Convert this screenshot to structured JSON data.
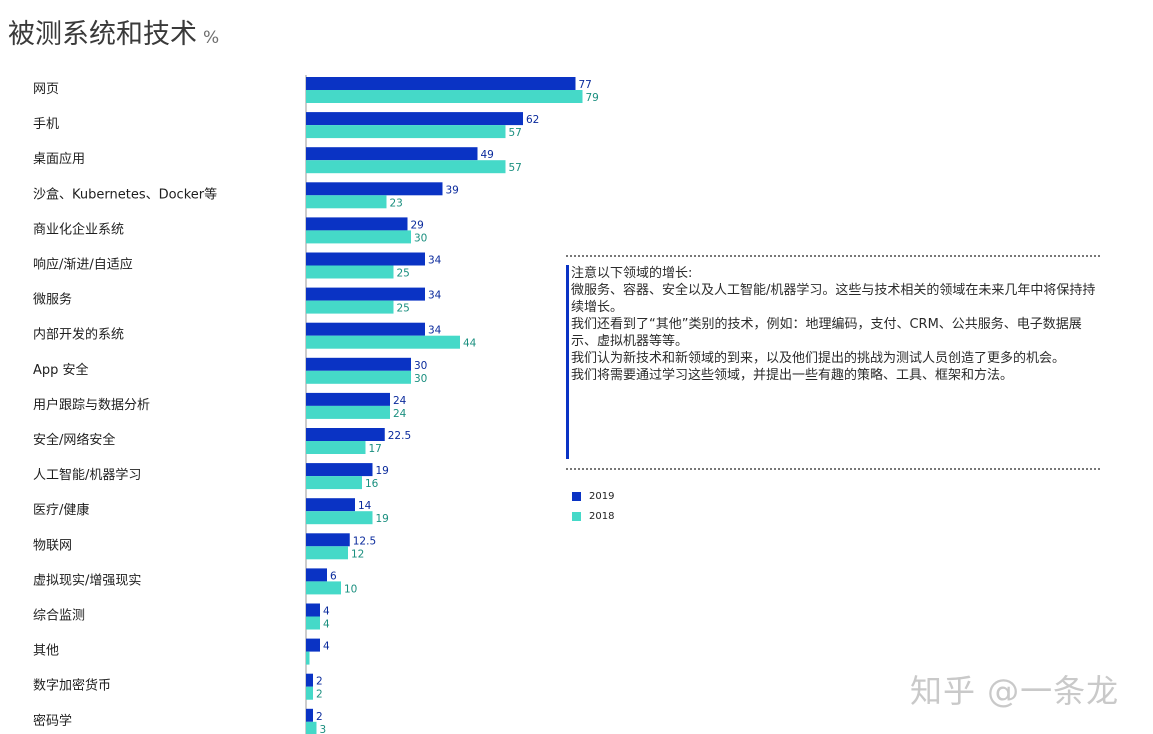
{
  "title": "被测系统和技术",
  "title_unit": "%",
  "colors": {
    "s2019": "#0a33c4",
    "s2018": "#45d9c8",
    "label2019": "#0a2a9c",
    "label2018": "#1a8f7f"
  },
  "note": {
    "heading": "注意以下领域的增长:",
    "lines": [
      "微服务、容器、安全以及人工智能/机器学习。这些与技术相关的领域在未来几年中将保持持续增长。",
      "我们还看到了“其他”类别的技术，例如：地理编码，支付、CRM、公共服务、电子数据展示、虚拟机器等等。",
      "我们认为新技术和新领域的到来，以及他们提出的挑战为测试人员创造了更多的机会。",
      "我们将需要通过学习这些领域，并提出一些有趣的策略、工具、框架和方法。"
    ]
  },
  "watermark": "知乎 @一条龙",
  "chart_data": {
    "type": "bar",
    "orientation": "horizontal",
    "categories": [
      "网页",
      "手机",
      "桌面应用",
      "沙盒、Kubernetes、Docker等",
      "商业化企业系统",
      "响应/渐进/自适应",
      "微服务",
      "内部开发的系统",
      "App 安全",
      "用户跟踪与数据分析",
      "安全/网络安全",
      "人工智能/机器学习",
      "医疗/健康",
      "物联网",
      "虚拟现实/增强现实",
      "综合监测",
      "其他",
      "数字加密货币",
      "密码学"
    ],
    "series": [
      {
        "name": "2019",
        "values": [
          77,
          62,
          49,
          39,
          29,
          34,
          34,
          34,
          30,
          24,
          22.5,
          19,
          14,
          12.5,
          6,
          4,
          4,
          2,
          2
        ],
        "labels": [
          "77",
          "62",
          "49",
          "39",
          "29",
          "34",
          "34",
          "34",
          "30",
          "24",
          "22.5",
          "19",
          "14",
          "12.5",
          "6",
          "4",
          "4",
          "2",
          "2"
        ]
      },
      {
        "name": "2018",
        "values": [
          79,
          57,
          57,
          23,
          30,
          25,
          25,
          44,
          30,
          24,
          17,
          16,
          19,
          12,
          10,
          4,
          1,
          2,
          3
        ],
        "labels": [
          "79",
          "57",
          "57",
          "23",
          "30",
          "25",
          "25",
          "44",
          "30",
          "24",
          "17",
          "16",
          "19",
          "12",
          "10",
          "4",
          "",
          "2",
          "3"
        ]
      }
    ],
    "legend_position": "right",
    "grid": false
  }
}
